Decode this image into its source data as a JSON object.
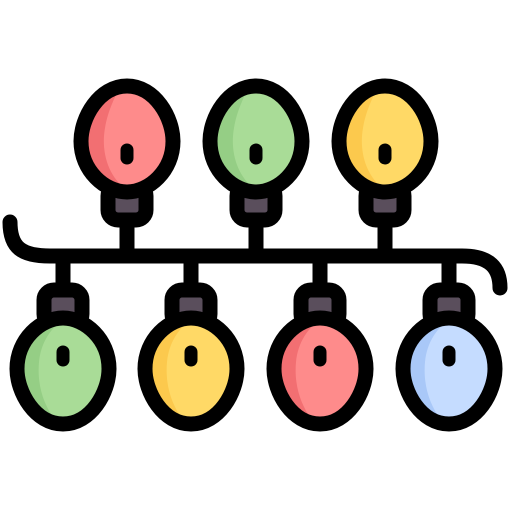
{
  "icon": {
    "name": "christmas-lights-icon",
    "outline_color": "#000000",
    "socket_color": "#5a4e5c",
    "top_row": [
      {
        "name": "red-bulb-icon",
        "fill": "#fe8b8b",
        "shade": "#f26f72"
      },
      {
        "name": "green-bulb-icon",
        "fill": "#a9dc97",
        "shade": "#95ce85"
      },
      {
        "name": "yellow-bulb-icon",
        "fill": "#ffd966",
        "shade": "#fcc94d"
      }
    ],
    "bottom_row": [
      {
        "name": "green-bulb-icon",
        "fill": "#a9dc97",
        "shade": "#95ce85"
      },
      {
        "name": "yellow-bulb-icon",
        "fill": "#ffd966",
        "shade": "#fcc94d"
      },
      {
        "name": "red-bulb-icon",
        "fill": "#fe8b8b",
        "shade": "#f26f72"
      },
      {
        "name": "blue-bulb-icon",
        "fill": "#c5dcff",
        "shade": "#a9c8f8"
      }
    ]
  }
}
